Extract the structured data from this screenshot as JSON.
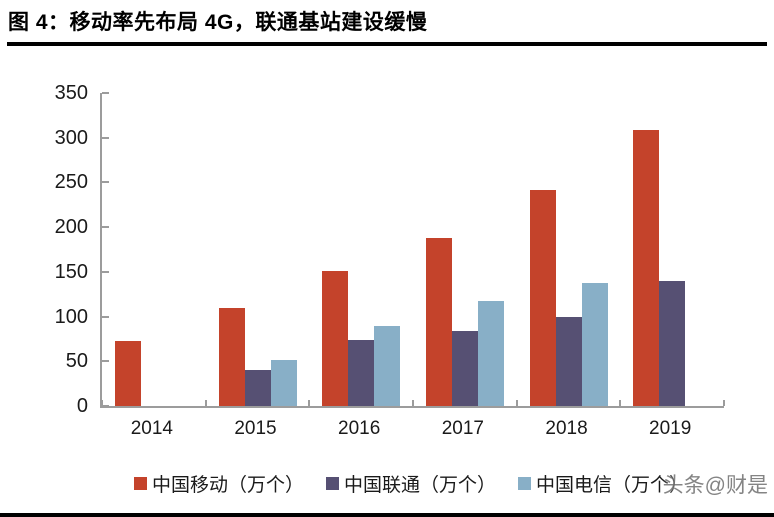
{
  "page": {
    "title": "图 4：移动率先布局 4G，联通基站建设缓慢",
    "watermark": "头条@财是"
  },
  "chart_data": {
    "type": "bar",
    "title": "图 4：移动率先布局 4G，联通基站建设缓慢",
    "categories": [
      "2014",
      "2015",
      "2016",
      "2017",
      "2018",
      "2019"
    ],
    "series": [
      {
        "name": "中国移动（万个）",
        "color": "#c4432b",
        "values": [
          73,
          110,
          151,
          188,
          242,
          309
        ]
      },
      {
        "name": "中国联通（万个）",
        "color": "#565073",
        "values": [
          null,
          40,
          74,
          84,
          99,
          140
        ]
      },
      {
        "name": "中国电信（万个）",
        "color": "#88afc7",
        "values": [
          null,
          51,
          89,
          117,
          138,
          null
        ]
      }
    ],
    "xlabel": "",
    "ylabel": "",
    "ylim": [
      0,
      350
    ],
    "yticks": [
      0,
      50,
      100,
      150,
      200,
      250,
      300,
      350
    ],
    "grid": false,
    "legend_position": "bottom",
    "axis_color": "#9c9c9c"
  }
}
